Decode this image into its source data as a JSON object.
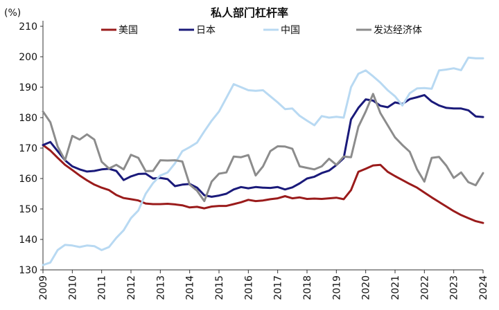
{
  "chart_data": {
    "type": "line",
    "title": "私人部门杠杆率",
    "unit_label": "(%)",
    "xlabel": "",
    "ylabel": "",
    "ylim": [
      130,
      210
    ],
    "xlim": [
      2009,
      2024
    ],
    "y_ticks": [
      130,
      140,
      150,
      160,
      170,
      180,
      190,
      200,
      210
    ],
    "x_ticks": [
      2009,
      2010,
      2011,
      2012,
      2013,
      2014,
      2015,
      2016,
      2017,
      2018,
      2019,
      2020,
      2021,
      2022,
      2023,
      2024
    ],
    "grid": "none",
    "legend_position": "top",
    "series": [
      {
        "name": "美国",
        "color": "#9a1b1b",
        "x": [
          2009,
          2009.25,
          2009.5,
          2009.75,
          2010,
          2010.25,
          2010.5,
          2010.75,
          2011,
          2011.25,
          2011.5,
          2011.75,
          2012,
          2012.25,
          2012.5,
          2012.75,
          2013,
          2013.25,
          2013.5,
          2013.75,
          2014,
          2014.25,
          2014.5,
          2014.75,
          2015,
          2015.25,
          2015.5,
          2015.75,
          2016,
          2016.25,
          2016.5,
          2016.75,
          2017,
          2017.25,
          2017.5,
          2017.75,
          2018,
          2018.25,
          2018.5,
          2018.75,
          2019,
          2019.25,
          2019.5,
          2019.75,
          2020,
          2020.25,
          2020.5,
          2020.75,
          2021,
          2021.25,
          2021.5,
          2021.75,
          2022,
          2022.25,
          2022.5,
          2022.75,
          2023,
          2023.25,
          2023.5,
          2023.75,
          2024
        ],
        "values": [
          171.0,
          169.2,
          166.8,
          164.5,
          162.8,
          161.0,
          159.4,
          158.0,
          157.0,
          156.2,
          154.6,
          153.6,
          153.2,
          152.8,
          151.8,
          151.6,
          151.6,
          151.7,
          151.5,
          151.2,
          150.5,
          150.7,
          150.2,
          150.8,
          151.0,
          151.0,
          151.6,
          152.2,
          153.0,
          152.6,
          152.8,
          153.2,
          153.5,
          154.2,
          153.5,
          153.8,
          153.3,
          153.4,
          153.3,
          153.5,
          153.7,
          153.2,
          156.2,
          162.2,
          163.2,
          164.3,
          164.5,
          162.2,
          160.8,
          159.5,
          158.2,
          157.0,
          155.4,
          153.8,
          152.3,
          150.8,
          149.3,
          148.0,
          147.0,
          146.0,
          145.4
        ]
      },
      {
        "name": "日本",
        "color": "#1a1a7a",
        "x": [
          2009,
          2009.25,
          2009.5,
          2009.75,
          2010,
          2010.25,
          2010.5,
          2010.75,
          2011,
          2011.25,
          2011.5,
          2011.75,
          2012,
          2012.25,
          2012.5,
          2012.75,
          2013,
          2013.25,
          2013.5,
          2013.75,
          2014,
          2014.25,
          2014.5,
          2014.75,
          2015,
          2015.25,
          2015.5,
          2015.75,
          2016,
          2016.25,
          2016.5,
          2016.75,
          2017,
          2017.25,
          2017.5,
          2017.75,
          2018,
          2018.25,
          2018.5,
          2018.75,
          2019,
          2019.25,
          2019.5,
          2019.75,
          2020,
          2020.25,
          2020.5,
          2020.75,
          2021,
          2021.25,
          2021.5,
          2021.75,
          2022,
          2022.25,
          2022.5,
          2022.75,
          2023,
          2023.25,
          2023.5,
          2023.75,
          2024
        ],
        "values": [
          171.0,
          172.0,
          169.0,
          166.0,
          164.0,
          163.0,
          162.3,
          162.5,
          163.0,
          163.2,
          162.5,
          159.5,
          160.7,
          161.5,
          161.6,
          160.0,
          160.2,
          159.8,
          157.5,
          158.0,
          158.2,
          157.0,
          154.5,
          154.0,
          154.4,
          155.0,
          156.4,
          157.2,
          156.8,
          157.2,
          157.0,
          156.9,
          157.2,
          156.4,
          157.1,
          158.4,
          160.0,
          160.6,
          161.8,
          162.6,
          164.4,
          166.7,
          179.4,
          183.2,
          186.0,
          185.6,
          183.9,
          183.4,
          185.0,
          184.5,
          186.1,
          186.7,
          187.4,
          185.3,
          184.0,
          183.2,
          183.0,
          183.0,
          182.4,
          180.4,
          180.2
        ]
      },
      {
        "name": "中国",
        "color": "#b8d9f2",
        "x": [
          2009,
          2009.25,
          2009.5,
          2009.75,
          2010,
          2010.25,
          2010.5,
          2010.75,
          2011,
          2011.25,
          2011.5,
          2011.75,
          2012,
          2012.25,
          2012.5,
          2012.75,
          2013,
          2013.25,
          2013.5,
          2013.75,
          2014,
          2014.25,
          2014.5,
          2014.75,
          2015,
          2015.25,
          2015.5,
          2015.75,
          2016,
          2016.25,
          2016.5,
          2016.75,
          2017,
          2017.25,
          2017.5,
          2017.75,
          2018,
          2018.25,
          2018.5,
          2018.75,
          2019,
          2019.25,
          2019.5,
          2019.75,
          2020,
          2020.25,
          2020.5,
          2020.75,
          2021,
          2021.25,
          2021.5,
          2021.75,
          2022,
          2022.25,
          2022.5,
          2022.75,
          2023,
          2023.25,
          2023.5,
          2023.75,
          2024
        ],
        "values": [
          131.6,
          132.4,
          136.5,
          138.2,
          138.0,
          137.5,
          138.0,
          137.8,
          136.5,
          137.5,
          140.5,
          143.0,
          147.0,
          149.5,
          155.0,
          158.5,
          161.0,
          162.0,
          165.0,
          169.0,
          170.3,
          171.8,
          175.5,
          179.0,
          182.0,
          186.5,
          191.0,
          190.0,
          189.0,
          188.8,
          189.0,
          187.0,
          185.0,
          182.8,
          183.0,
          180.6,
          179.0,
          177.5,
          180.5,
          180.0,
          180.3,
          180.0,
          190.0,
          194.4,
          195.5,
          193.6,
          191.5,
          189.0,
          187.0,
          184.0,
          188.0,
          189.6,
          189.7,
          189.5,
          195.5,
          195.8,
          196.2,
          195.6,
          199.7,
          199.5,
          199.5
        ]
      },
      {
        "name": "发达经济体",
        "color": "#8c8c8c",
        "x": [
          2009,
          2009.25,
          2009.5,
          2009.75,
          2010,
          2010.25,
          2010.5,
          2010.75,
          2011,
          2011.25,
          2011.5,
          2011.75,
          2012,
          2012.25,
          2012.5,
          2012.75,
          2013,
          2013.25,
          2013.5,
          2013.75,
          2014,
          2014.25,
          2014.5,
          2014.75,
          2015,
          2015.25,
          2015.5,
          2015.75,
          2016,
          2016.25,
          2016.5,
          2016.75,
          2017,
          2017.25,
          2017.5,
          2017.75,
          2018,
          2018.25,
          2018.5,
          2018.75,
          2019,
          2019.25,
          2019.5,
          2019.75,
          2020,
          2020.25,
          2020.5,
          2020.75,
          2021,
          2021.25,
          2021.5,
          2021.75,
          2022,
          2022.25,
          2022.5,
          2022.75,
          2023,
          2023.25,
          2023.5,
          2023.75,
          2024
        ],
        "values": [
          182.0,
          178.5,
          170.5,
          166.0,
          174.0,
          172.8,
          174.5,
          172.8,
          165.5,
          163.3,
          164.5,
          163.0,
          167.8,
          166.8,
          162.4,
          162.5,
          166.0,
          165.9,
          166.0,
          165.6,
          158.0,
          156.0,
          152.6,
          159.0,
          161.6,
          162.0,
          167.2,
          167.0,
          167.7,
          161.0,
          164.0,
          169.0,
          170.6,
          170.5,
          169.8,
          164.0,
          163.5,
          163.0,
          164.0,
          166.5,
          164.5,
          167.2,
          167.0,
          177.0,
          182.0,
          187.8,
          181.5,
          177.5,
          173.5,
          171.0,
          168.8,
          163.0,
          159.0,
          166.8,
          167.1,
          164.2,
          160.2,
          162.0,
          158.8,
          157.8,
          161.8
        ]
      }
    ]
  }
}
